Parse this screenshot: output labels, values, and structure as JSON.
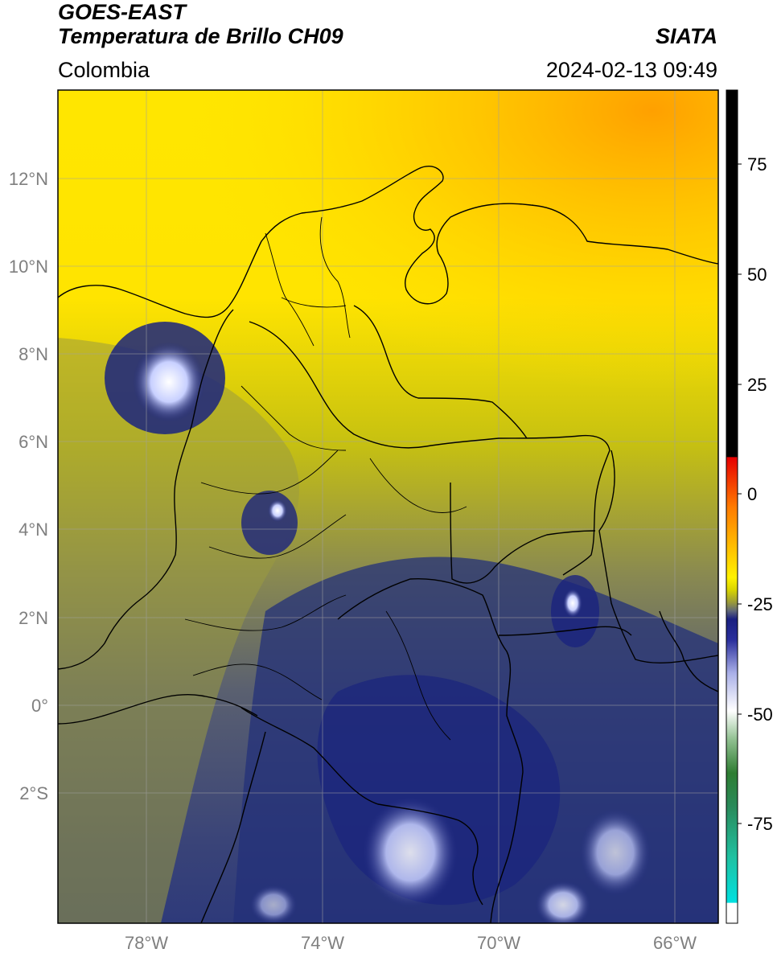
{
  "header": {
    "satellite": "GOES-EAST",
    "product": "Temperatura de Brillo CH09",
    "region": "Colombia",
    "source": "SIATA",
    "datetime": "2024-02-13 09:49"
  },
  "map": {
    "lon_range": [
      -80,
      -65
    ],
    "lat_range": [
      -5,
      14
    ],
    "lon_ticks": [
      "78°W",
      "74°W",
      "70°W",
      "66°W"
    ],
    "lat_ticks": [
      "12°N",
      "10°N",
      "8°N",
      "6°N",
      "4°N",
      "2°N",
      "0°",
      "2°S"
    ],
    "gridlines": true
  },
  "colorbar": {
    "ticks": [
      "75",
      "50",
      "25",
      "0",
      "-25",
      "-50",
      "-75"
    ]
  },
  "colors": {
    "warm_bg": "#e6e000",
    "yellow": "#fff200",
    "orange": "#ffb000",
    "olive": "#9a9a3a",
    "slate": "#4e5a72",
    "navy": "#1a237e",
    "white_cloud": "#f4f6ff"
  }
}
